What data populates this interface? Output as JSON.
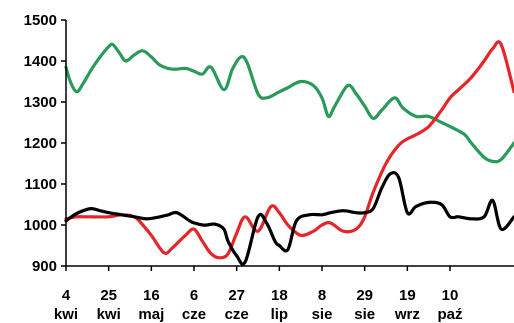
{
  "chart_data": {
    "type": "line",
    "title": "",
    "xlabel": "",
    "ylabel": "",
    "ylim": [
      900,
      1500
    ],
    "yticks": [
      "900",
      "1000",
      "1100",
      "1200",
      "1300",
      "1400",
      "1500"
    ],
    "xticks": [
      {
        "day": "4",
        "month": "kwi"
      },
      {
        "day": "25",
        "month": "kwi"
      },
      {
        "day": "16",
        "month": "maj"
      },
      {
        "day": "6",
        "month": "cze"
      },
      {
        "day": "27",
        "month": "cze"
      },
      {
        "day": "18",
        "month": "lip"
      },
      {
        "day": "8",
        "month": "sie"
      },
      {
        "day": "29",
        "month": "sie"
      },
      {
        "day": "19",
        "month": "wrz"
      },
      {
        "day": "10",
        "month": "paź"
      }
    ],
    "x_range": [
      0,
      10.5
    ],
    "grid": false,
    "legend": "none",
    "series": [
      {
        "color": "#2a9a5b",
        "x": [
          0,
          0.1,
          0.25,
          0.4,
          0.6,
          0.8,
          1.0,
          1.1,
          1.25,
          1.4,
          1.6,
          1.8,
          2.0,
          2.2,
          2.5,
          2.8,
          3.0,
          3.2,
          3.4,
          3.7,
          3.9,
          4.1,
          4.25,
          4.5,
          4.7,
          5.0,
          5.2,
          5.5,
          5.8,
          6.0,
          6.15,
          6.3,
          6.6,
          6.8,
          7.0,
          7.2,
          7.4,
          7.7,
          7.9,
          8.2,
          8.5,
          8.8,
          9.1,
          9.35,
          9.5,
          9.8,
          10.0,
          10.2,
          10.5
        ],
        "y": [
          1385,
          1350,
          1325,
          1345,
          1380,
          1410,
          1435,
          1440,
          1420,
          1400,
          1415,
          1425,
          1410,
          1390,
          1380,
          1382,
          1375,
          1368,
          1385,
          1330,
          1380,
          1410,
          1395,
          1320,
          1310,
          1325,
          1335,
          1350,
          1340,
          1310,
          1265,
          1290,
          1340,
          1320,
          1290,
          1260,
          1280,
          1310,
          1285,
          1265,
          1265,
          1250,
          1235,
          1220,
          1200,
          1165,
          1155,
          1160,
          1200
        ]
      },
      {
        "color": "#e4262a",
        "x": [
          0,
          0.25,
          0.5,
          1.0,
          1.3,
          1.6,
          1.8,
          2.0,
          2.3,
          2.5,
          2.8,
          3.0,
          3.2,
          3.4,
          3.6,
          3.8,
          4.0,
          4.2,
          4.5,
          4.8,
          5.0,
          5.2,
          5.5,
          5.8,
          6.0,
          6.2,
          6.5,
          6.8,
          7.0,
          7.2,
          7.5,
          7.8,
          8.0,
          8.2,
          8.5,
          8.8,
          9.0,
          9.2,
          9.5,
          9.8,
          10.0,
          10.2,
          10.5
        ],
        "y": [
          1015,
          1020,
          1020,
          1020,
          1025,
          1020,
          1000,
          975,
          932,
          945,
          975,
          990,
          960,
          930,
          920,
          930,
          980,
          1020,
          985,
          1045,
          1030,
          1000,
          975,
          985,
          1000,
          1005,
          985,
          990,
          1020,
          1080,
          1150,
          1195,
          1210,
          1220,
          1240,
          1280,
          1310,
          1330,
          1360,
          1400,
          1430,
          1440,
          1325
        ]
      },
      {
        "color": "#000000",
        "x": [
          0,
          0.2,
          0.4,
          0.6,
          0.8,
          1.0,
          1.3,
          1.6,
          1.9,
          2.2,
          2.4,
          2.6,
          2.9,
          3.0,
          3.2,
          3.3,
          3.5,
          3.7,
          3.8,
          4.0,
          4.2,
          4.5,
          4.7,
          4.9,
          5.0,
          5.2,
          5.4,
          5.7,
          6.0,
          6.2,
          6.5,
          6.8,
          7.0,
          7.2,
          7.4,
          7.6,
          7.8,
          8.0,
          8.2,
          8.5,
          8.8,
          9.0,
          9.2,
          9.5,
          9.8,
          10.0,
          10.2,
          10.5
        ],
        "y": [
          1010,
          1025,
          1035,
          1040,
          1035,
          1030,
          1025,
          1020,
          1015,
          1020,
          1025,
          1030,
          1010,
          1005,
          1000,
          1000,
          1002,
          990,
          960,
          925,
          910,
          1020,
          1005,
          960,
          950,
          940,
          1010,
          1025,
          1025,
          1030,
          1035,
          1030,
          1030,
          1040,
          1090,
          1125,
          1115,
          1030,
          1045,
          1055,
          1050,
          1020,
          1020,
          1015,
          1020,
          1060,
          990,
          1020
        ]
      }
    ]
  }
}
